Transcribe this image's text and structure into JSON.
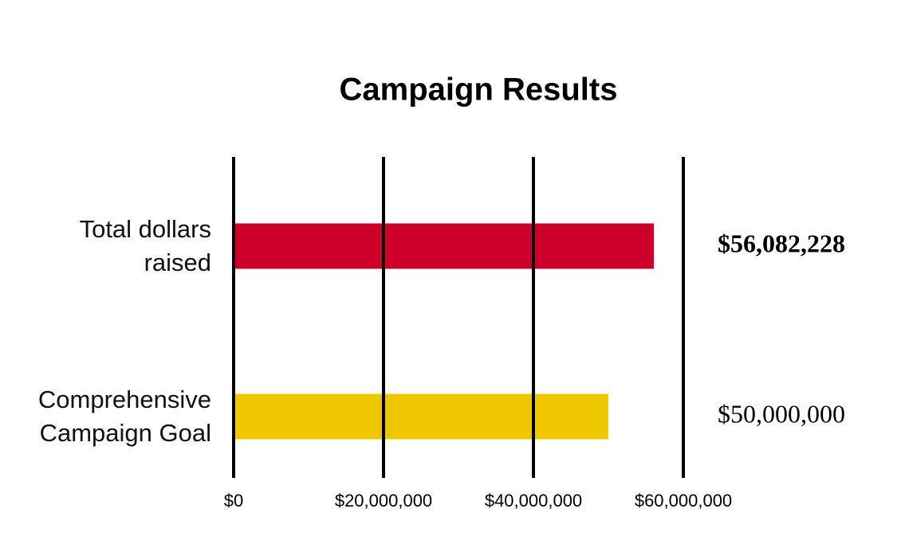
{
  "chart_data": {
    "type": "bar",
    "orientation": "horizontal",
    "title": "Campaign Results",
    "categories": [
      "Total dollars raised",
      "Comprehensive Campaign Goal"
    ],
    "values": [
      56082228,
      50000000
    ],
    "value_labels": [
      "$56,082,228",
      "$50,000,000"
    ],
    "colors": [
      "#cc0029",
      "#efc700"
    ],
    "xlim": [
      0,
      60000000
    ],
    "xticks": [
      {
        "value": 0,
        "label": "$0"
      },
      {
        "value": 20000000,
        "label": "$20,000,000"
      },
      {
        "value": 40000000,
        "label": "$40,000,000"
      },
      {
        "value": 60000000,
        "label": "$60,000,000"
      }
    ],
    "grid": true
  }
}
